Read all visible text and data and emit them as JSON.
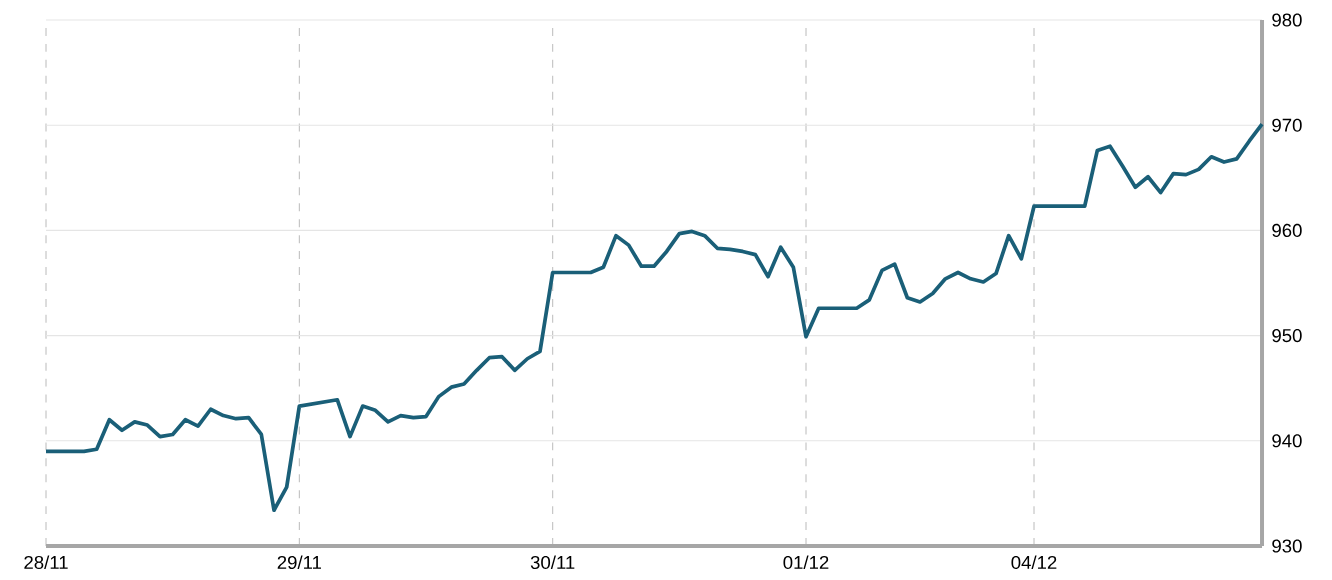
{
  "chart_data": {
    "type": "line",
    "categories": [
      "28/11",
      null,
      null,
      null,
      null,
      null,
      null,
      null,
      null,
      null,
      null,
      null,
      null,
      null,
      null,
      null,
      null,
      null,
      null,
      null,
      "29/11",
      null,
      null,
      null,
      null,
      null,
      null,
      null,
      null,
      null,
      null,
      null,
      null,
      null,
      null,
      null,
      null,
      null,
      null,
      null,
      "30/11",
      null,
      null,
      null,
      null,
      null,
      null,
      null,
      null,
      null,
      null,
      null,
      null,
      null,
      null,
      null,
      null,
      null,
      null,
      null,
      "01/12",
      null,
      null,
      null,
      null,
      null,
      null,
      null,
      null,
      null,
      null,
      null,
      null,
      null,
      null,
      null,
      null,
      null,
      "04/12",
      null,
      null,
      null,
      null,
      null,
      null,
      null,
      null,
      null,
      null,
      null,
      null,
      null,
      null,
      null,
      null,
      null,
      null
    ],
    "series": [
      {
        "color": "#1a5f78",
        "values": [
          939.0,
          939.0,
          939.0,
          939.0,
          939.2,
          942.0,
          941.0,
          941.8,
          941.5,
          940.4,
          940.6,
          942.0,
          941.4,
          943.0,
          942.4,
          942.1,
          942.2,
          940.6,
          933.4,
          935.6,
          943.3,
          943.5,
          943.7,
          943.9,
          940.4,
          943.3,
          942.9,
          941.8,
          942.4,
          942.2,
          942.3,
          944.2,
          945.1,
          945.4,
          946.7,
          947.9,
          948.0,
          946.7,
          947.8,
          948.5,
          956.0,
          956.0,
          956.0,
          956.0,
          956.5,
          959.5,
          958.6,
          956.6,
          956.6,
          958.0,
          959.7,
          959.9,
          959.5,
          958.3,
          958.2,
          958.0,
          957.7,
          955.6,
          958.4,
          956.5,
          949.9,
          952.6,
          952.6,
          952.6,
          952.6,
          953.4,
          956.2,
          956.8,
          953.6,
          953.2,
          954.0,
          955.4,
          956.0,
          955.4,
          955.1,
          955.9,
          959.5,
          957.3,
          962.3,
          962.3,
          962.3,
          962.3,
          962.3,
          967.6,
          968.0,
          966.1,
          964.1,
          965.1,
          963.6,
          965.4,
          965.3,
          965.8,
          967.0,
          966.5,
          966.8,
          968.5,
          970.1
        ]
      }
    ],
    "ylim": [
      930,
      980
    ],
    "yticks": [
      930,
      940,
      950,
      960,
      970,
      980
    ],
    "grid": true,
    "marker": "none",
    "line_style": "solid"
  }
}
